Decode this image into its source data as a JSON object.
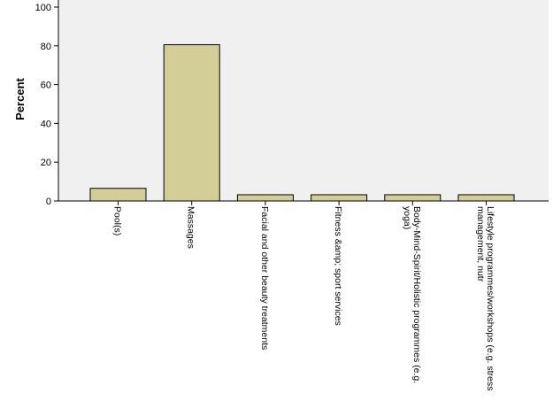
{
  "chart_data": {
    "type": "bar",
    "ylabel": "Percent",
    "xlabel": "",
    "ylim": [
      0,
      100
    ],
    "yticks": [
      0,
      20,
      40,
      60,
      80,
      100
    ],
    "grid": false,
    "categories": [
      [
        "Pool(s)"
      ],
      [
        "Massages"
      ],
      [
        "Facial and other beauty treatments"
      ],
      [
        "Fitness &amp; sport services"
      ],
      [
        "Body-Mind-Spirit/Holistic programmes (e.g.",
        "yoga)"
      ],
      [
        "Lifestyle programmes/workshops (e.g. stress",
        "management, nutr"
      ]
    ],
    "values": [
      6.5,
      80.6,
      3.2,
      3.2,
      3.2,
      3.2
    ],
    "colors": {
      "plot_background": "#f0f0f0",
      "bar_fill": "#d3ce97",
      "bar_stroke": "#000000"
    }
  }
}
